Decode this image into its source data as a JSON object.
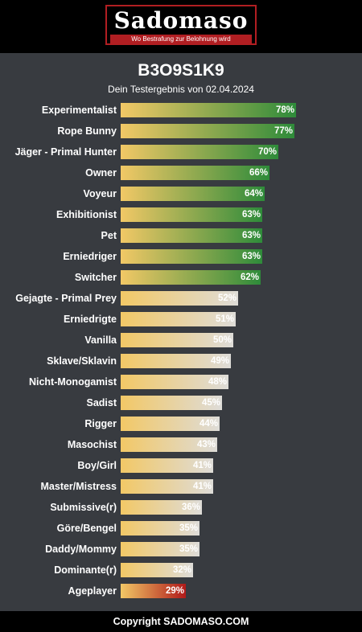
{
  "header": {
    "logo_text": "Sadomaso",
    "logo_slogan": "Wo Bestrafung zur Belohnung wird"
  },
  "colors": {
    "background": "#383b40",
    "header": "#000000",
    "brand_red": "#b11e22",
    "bar_start": "#f2c866",
    "bar_high_end": "#2e8b3a",
    "bar_mid_end": "#dedcd8",
    "bar_low_end": "#b01a1a"
  },
  "chart_data": {
    "type": "bar",
    "orientation": "horizontal",
    "title": "B3O9S1K9",
    "subtitle": "Dein Testergebnis von 02.04.2024",
    "categories": [
      "Experimentalist",
      "Rope Bunny",
      "Jäger - Primal Hunter",
      "Owner",
      "Voyeur",
      "Exhibitionist",
      "Pet",
      "Erniedriger",
      "Switcher",
      "Gejagte - Primal Prey",
      "Erniedrigte",
      "Vanilla",
      "Sklave/Sklavin",
      "Nicht-Monogamist",
      "Sadist",
      "Rigger",
      "Masochist",
      "Boy/Girl",
      "Master/Mistress",
      "Submissive(r)",
      "Göre/Bengel",
      "Daddy/Mommy",
      "Dominante(r)",
      "Ageplayer"
    ],
    "values": [
      78,
      77,
      70,
      66,
      64,
      63,
      63,
      63,
      62,
      52,
      51,
      50,
      49,
      48,
      45,
      44,
      43,
      41,
      41,
      36,
      35,
      35,
      32,
      29
    ],
    "labels": [
      "78%",
      "77%",
      "70%",
      "66%",
      "64%",
      "63%",
      "63%",
      "63%",
      "62%",
      "52%",
      "51%",
      "50%",
      "49%",
      "48%",
      "45%",
      "44%",
      "43%",
      "41%",
      "41%",
      "36%",
      "35%",
      "35%",
      "32%",
      "29%"
    ],
    "unit": "%",
    "xlim": [
      0,
      100
    ],
    "grid": false,
    "legend": "none"
  },
  "footer": {
    "copyright": "Copyright SADOMASO.COM"
  }
}
